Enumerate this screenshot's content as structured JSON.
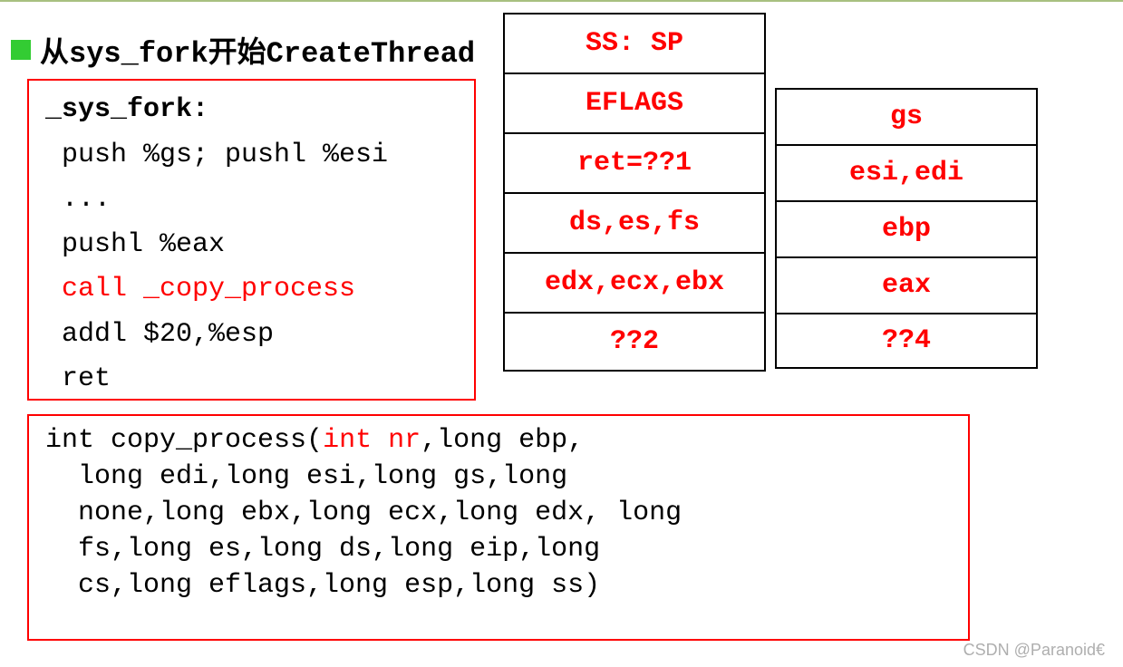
{
  "title": {
    "prefix_cn": "从",
    "mono1": "sys_fork",
    "middle_cn": "开始",
    "mono2": "CreateThread"
  },
  "code1": {
    "l1": "_sys_fork:",
    "l2": " push %gs; pushl %esi",
    "l3": " ...",
    "l4": " pushl %eax",
    "l5": " call _copy_process",
    "l6": " addl $20,%esp",
    "l7": " ret"
  },
  "stack1": {
    "c1": "SS: SP",
    "c2": "EFLAGS",
    "c3": "ret=??1",
    "c4": "ds,es,fs",
    "c5": "edx,ecx,ebx",
    "c6": "??2"
  },
  "stack2": {
    "c1": "gs",
    "c2": "esi,edi",
    "c3": "ebp",
    "c4": "eax",
    "c5": "??4"
  },
  "code2": {
    "l1_a": "int copy_process(",
    "l1_b": "int nr",
    "l1_c": ",long ebp,",
    "l2": "  long edi,long esi,long gs,long",
    "l3": "  none,long ebx,long ecx,long edx, long",
    "l4": "  fs,long es,long ds,long eip,long",
    "l5": "  cs,long eflags,long esp,long ss)"
  },
  "watermark": "CSDN @Paranoid€",
  "colors": {
    "green_bullet": "#33cc33",
    "red": "#ff0000",
    "top_border": "#a8c080",
    "black": "#000000",
    "bg": "#ffffff"
  }
}
